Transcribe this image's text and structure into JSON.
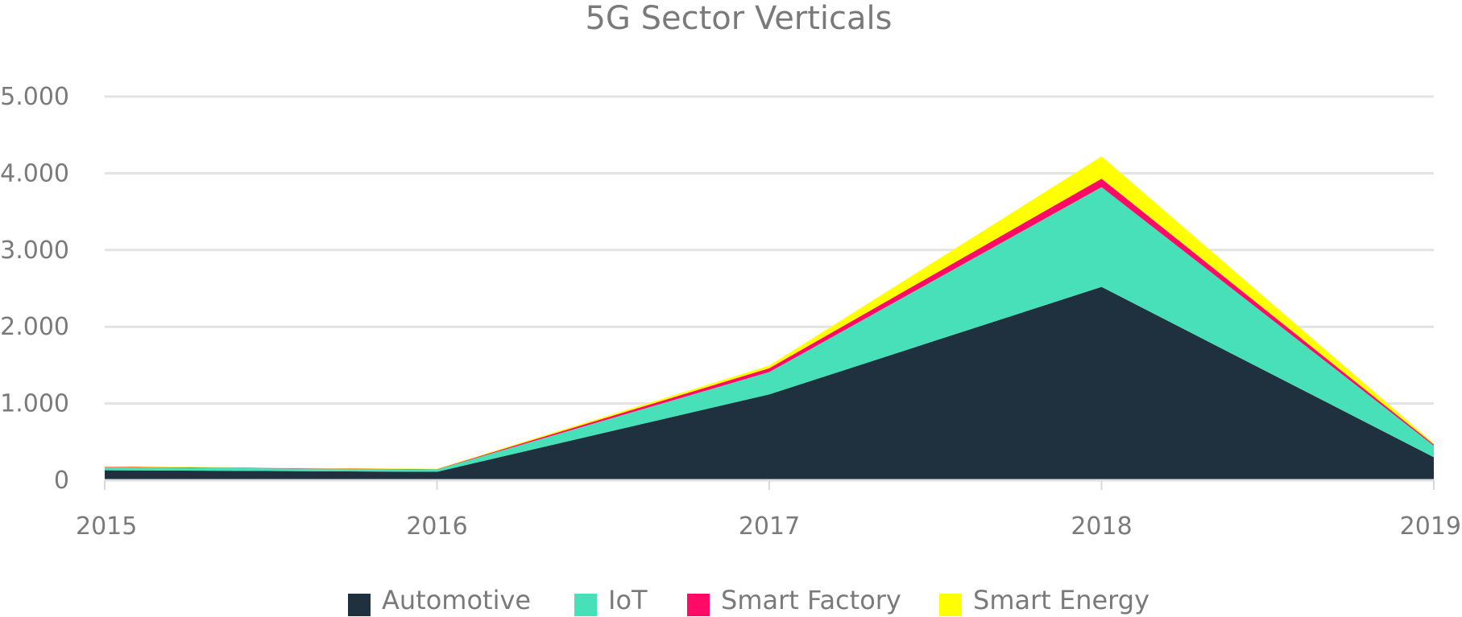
{
  "chart_data": {
    "type": "area",
    "stacked": true,
    "title": "5G Sector Verticals",
    "xlabel": "",
    "ylabel": "",
    "x": [
      "2015",
      "2016",
      "2017",
      "2018",
      "2019"
    ],
    "yticks": [
      "0",
      "1.000",
      "2.000",
      "3.000",
      "4.000",
      "5.000"
    ],
    "ylim": [
      0,
      5000
    ],
    "grid": true,
    "legend_position": "bottom",
    "series": [
      {
        "name": "Automotive",
        "color": "#1f313e",
        "values": [
          130,
          110,
          1120,
          2520,
          300
        ]
      },
      {
        "name": "IoT",
        "color": "#48e0b8",
        "values": [
          40,
          30,
          290,
          1300,
          150
        ]
      },
      {
        "name": "Smart Factory",
        "color": "#ff0a67",
        "values": [
          5,
          5,
          50,
          110,
          15
        ]
      },
      {
        "name": "Smart Energy",
        "color": "#ffff00",
        "values": [
          5,
          5,
          35,
          290,
          15
        ]
      }
    ]
  }
}
